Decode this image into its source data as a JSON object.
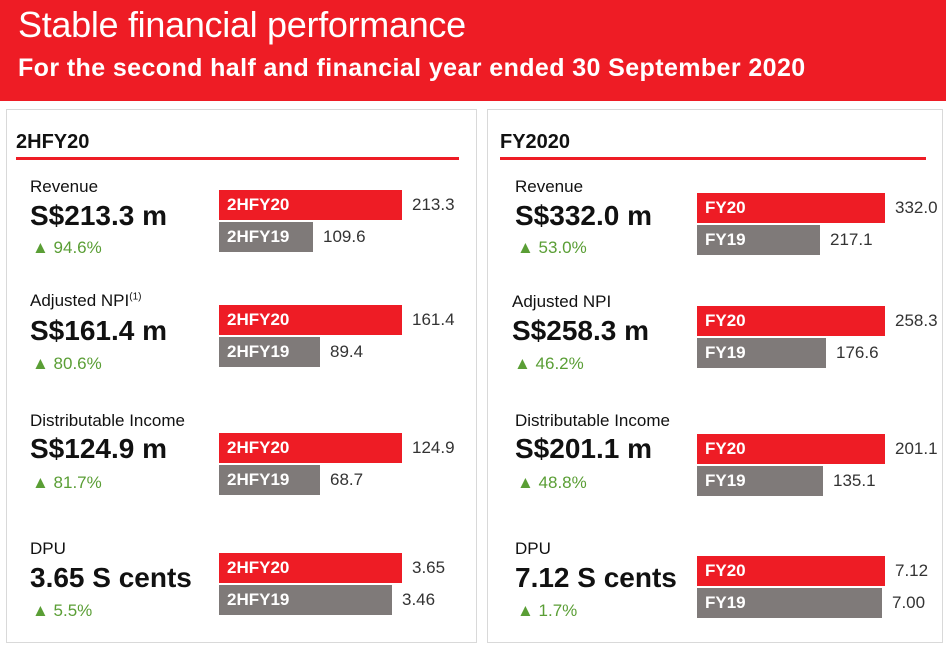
{
  "header": {
    "title": "Stable financial performance",
    "subtitle": "For the second half and financial year ended 30 September 2020"
  },
  "colors": {
    "accent": "#ee1c25",
    "previous": "#7f7a79",
    "growth": "#5a9e35"
  },
  "panels": {
    "left": {
      "title": "2HFY20",
      "metrics": [
        {
          "label": "Revenue",
          "value": "S$213.3 m",
          "change": "▲ 94.6%"
        },
        {
          "label": "Adjusted NPI",
          "note": "(1)",
          "value": "S$161.4 m",
          "change": "▲ 80.6%"
        },
        {
          "label": "Distributable Income",
          "value": "S$124.9 m",
          "change": "▲ 81.7%"
        },
        {
          "label": "DPU",
          "value": "3.65 S cents",
          "change": "▲ 5.5%"
        }
      ]
    },
    "right": {
      "title": "FY2020",
      "metrics": [
        {
          "label": "Revenue",
          "value": "S$332.0 m",
          "change": "▲ 53.0%"
        },
        {
          "label": "Adjusted NPI",
          "value": "S$258.3 m",
          "change": "▲ 46.2%"
        },
        {
          "label": "Distributable Income",
          "value": "S$201.1 m",
          "change": "▲ 48.8%"
        },
        {
          "label": "DPU",
          "value": "7.12 S cents",
          "change": "▲ 1.7%"
        }
      ]
    }
  },
  "chart_data": [
    {
      "type": "bar",
      "panel": "2HFY20",
      "title": "Revenue",
      "categories": [
        "2HFY20",
        "2HFY19"
      ],
      "values": [
        213.3,
        109.6
      ],
      "labels": [
        "213.3",
        "109.6"
      ]
    },
    {
      "type": "bar",
      "panel": "2HFY20",
      "title": "Adjusted NPI",
      "categories": [
        "2HFY20",
        "2HFY19"
      ],
      "values": [
        161.4,
        89.4
      ],
      "labels": [
        "161.4",
        "89.4"
      ]
    },
    {
      "type": "bar",
      "panel": "2HFY20",
      "title": "Distributable Income",
      "categories": [
        "2HFY20",
        "2HFY19"
      ],
      "values": [
        124.9,
        68.7
      ],
      "labels": [
        "124.9",
        "68.7"
      ]
    },
    {
      "type": "bar",
      "panel": "2HFY20",
      "title": "DPU",
      "categories": [
        "2HFY20",
        "2HFY19"
      ],
      "values": [
        3.65,
        3.46
      ],
      "labels": [
        "3.65",
        "3.46"
      ]
    },
    {
      "type": "bar",
      "panel": "FY2020",
      "title": "Revenue",
      "categories": [
        "FY20",
        "FY19"
      ],
      "values": [
        332.0,
        217.1
      ],
      "labels": [
        "332.0",
        "217.1"
      ]
    },
    {
      "type": "bar",
      "panel": "FY2020",
      "title": "Adjusted NPI",
      "categories": [
        "FY20",
        "FY19"
      ],
      "values": [
        258.3,
        176.6
      ],
      "labels": [
        "258.3",
        "176.6"
      ]
    },
    {
      "type": "bar",
      "panel": "FY2020",
      "title": "Distributable Income",
      "categories": [
        "FY20",
        "FY19"
      ],
      "values": [
        201.1,
        135.1
      ],
      "labels": [
        "201.1",
        "135.1"
      ]
    },
    {
      "type": "bar",
      "panel": "FY2020",
      "title": "DPU",
      "categories": [
        "FY20",
        "FY19"
      ],
      "values": [
        7.12,
        7.0
      ],
      "labels": [
        "7.12",
        "7.00"
      ]
    }
  ]
}
